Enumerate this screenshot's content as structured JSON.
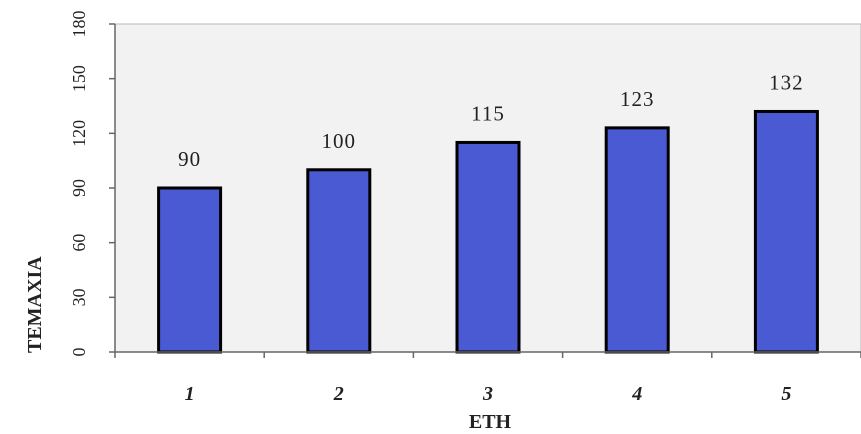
{
  "chart_data": {
    "type": "bar",
    "categories": [
      "1",
      "2",
      "3",
      "4",
      "5"
    ],
    "values": [
      90,
      100,
      115,
      123,
      132
    ],
    "data_labels": [
      "90",
      "100",
      "115",
      "123",
      "132"
    ],
    "title": "",
    "xlabel": "ETH",
    "ylabel": "TEMAXIA",
    "ylim": [
      0,
      180
    ],
    "yticks": [
      "0",
      "30",
      "60",
      "90",
      "120",
      "150",
      "180"
    ],
    "grid": false,
    "legend": "none",
    "bar_color": "#4a5ad2",
    "bar_edge_color": "#000000",
    "plot_background": "#f2f2f2"
  }
}
